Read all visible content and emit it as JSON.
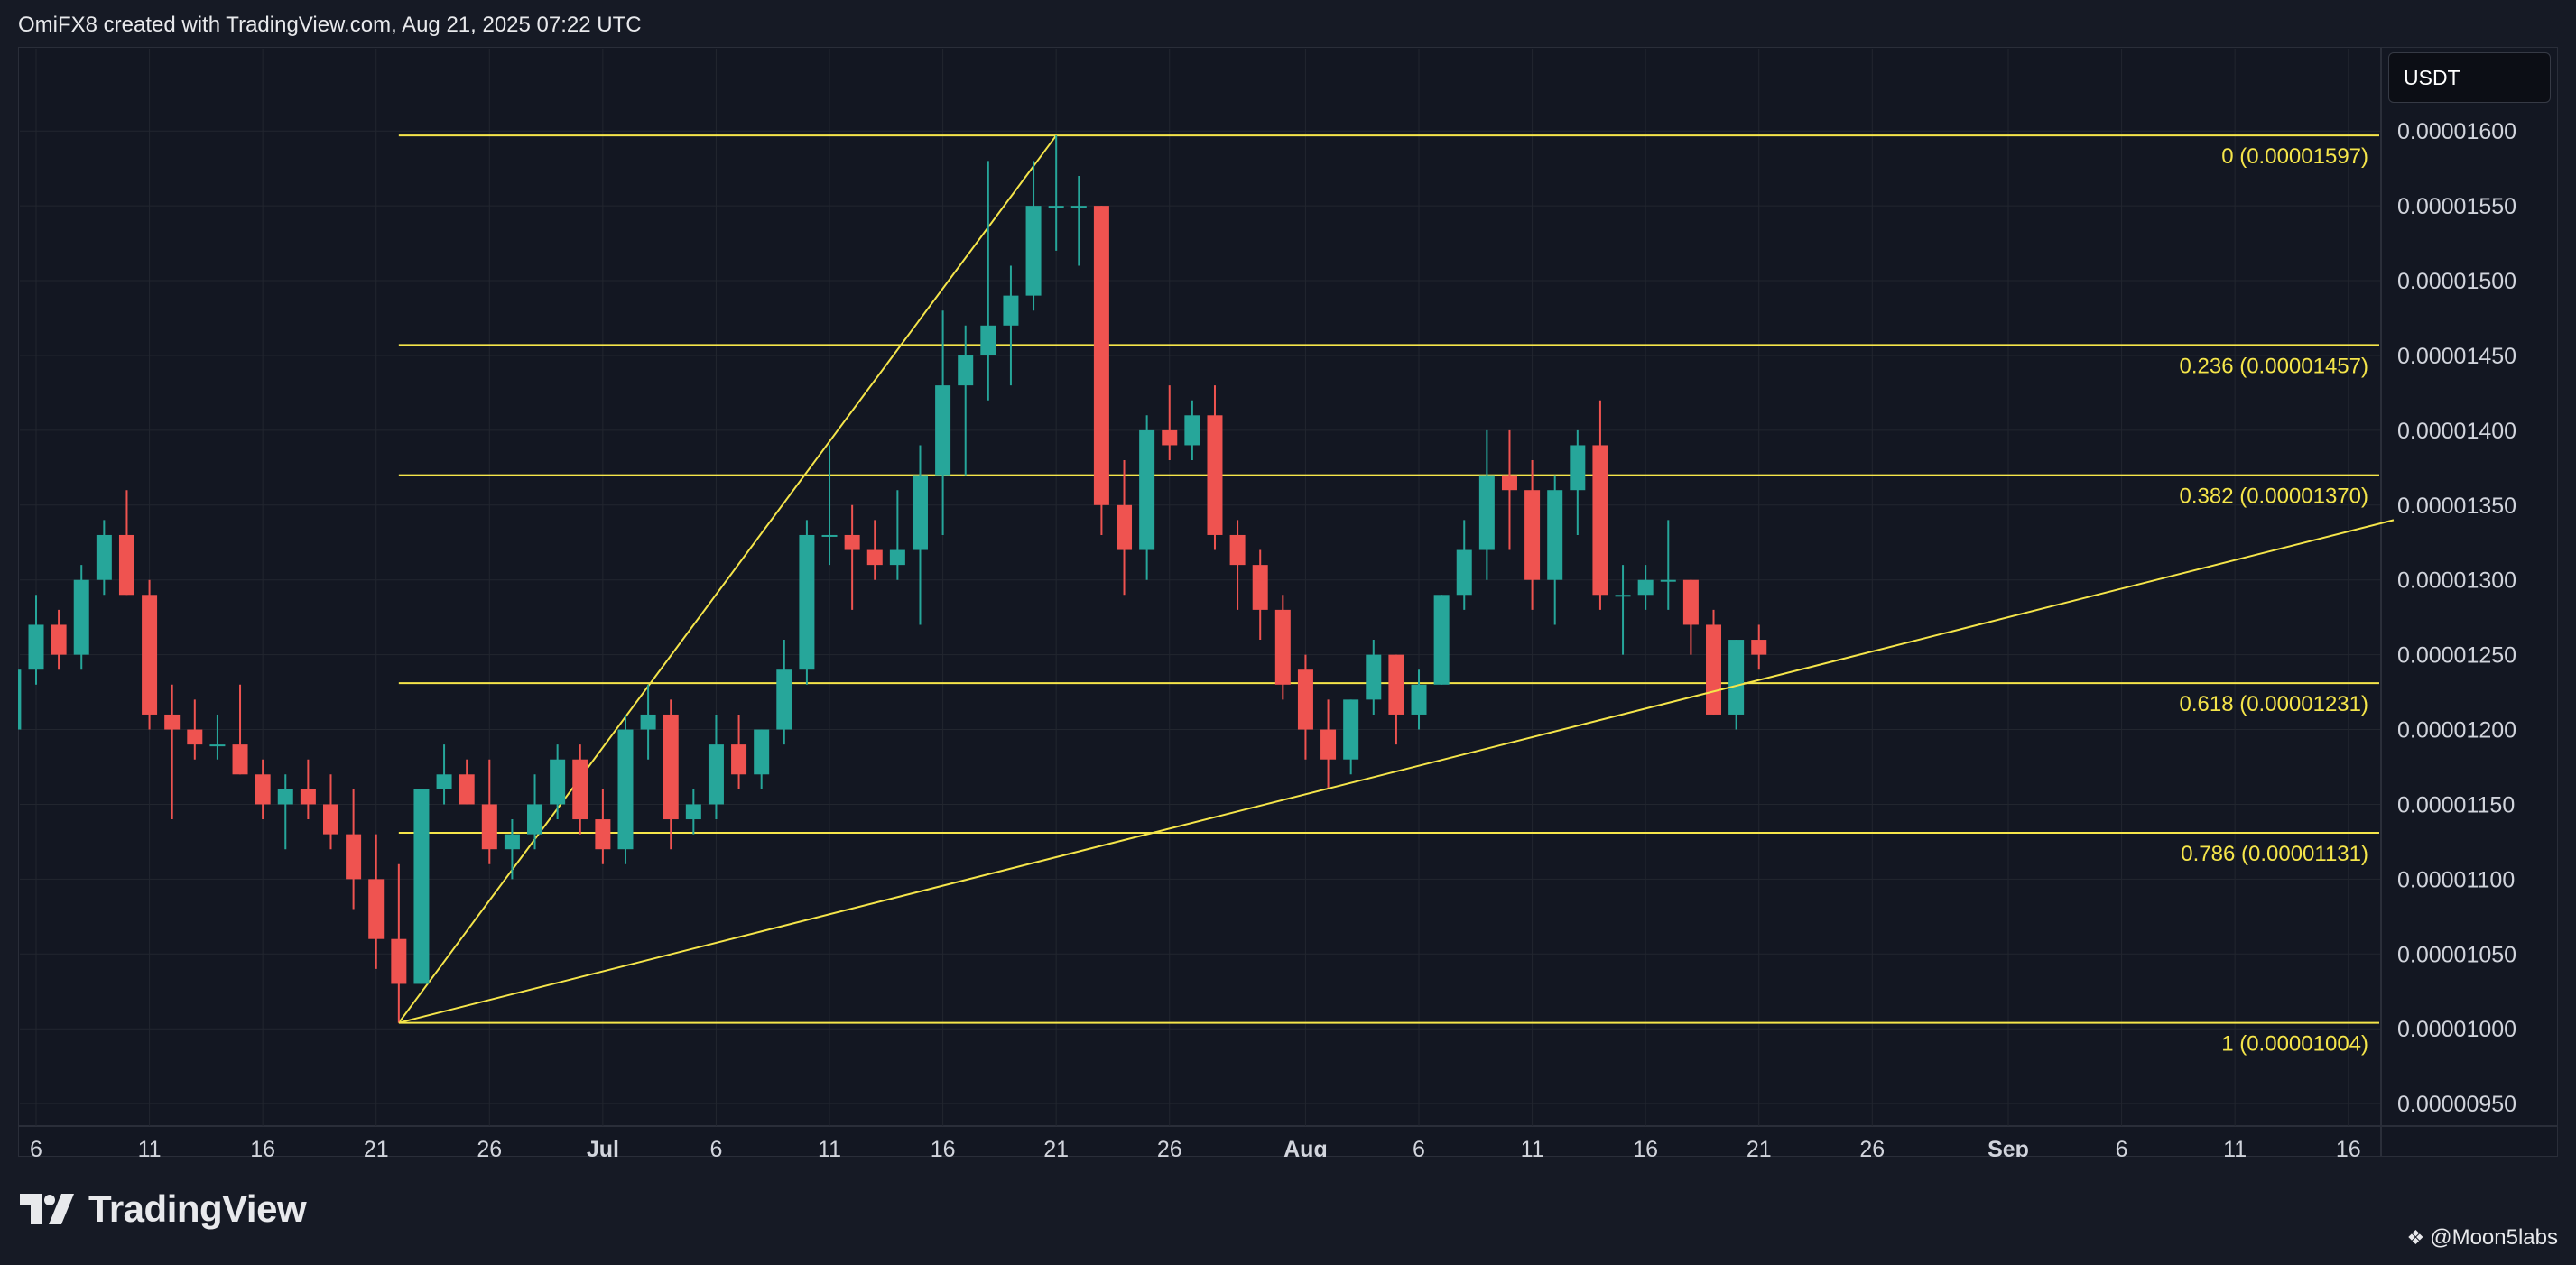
{
  "header": {
    "credit": "OmiFX8 created with TradingView.com, Aug 21, 2025 07:22 UTC"
  },
  "currency": "USDT",
  "footer": {
    "brand": "TradingView",
    "watermark": "@Moon5labs"
  },
  "colors": {
    "up": "#26a69a",
    "down": "#ef5350",
    "fib": "#f5e54a",
    "grid": "#22262f",
    "text": "#d1d4dc"
  },
  "icons": {
    "brand_logo": "tradingview-logo-icon",
    "watermark_mark": "diamond-icon"
  },
  "chart_data": {
    "type": "candlestick",
    "title": "",
    "xlabel": "",
    "ylabel": "",
    "ylim": [
      9.35e-06,
      1.655e-05
    ],
    "x_tick_labels": [
      {
        "date": "2025-06-06",
        "label": "6"
      },
      {
        "date": "2025-06-11",
        "label": "11"
      },
      {
        "date": "2025-06-16",
        "label": "16"
      },
      {
        "date": "2025-06-21",
        "label": "21"
      },
      {
        "date": "2025-06-26",
        "label": "26"
      },
      {
        "date": "2025-07-01",
        "label": "Jul"
      },
      {
        "date": "2025-07-06",
        "label": "6"
      },
      {
        "date": "2025-07-11",
        "label": "11"
      },
      {
        "date": "2025-07-16",
        "label": "16"
      },
      {
        "date": "2025-07-21",
        "label": "21"
      },
      {
        "date": "2025-07-26",
        "label": "26"
      },
      {
        "date": "2025-08-01",
        "label": "Aug"
      },
      {
        "date": "2025-08-06",
        "label": "6"
      },
      {
        "date": "2025-08-11",
        "label": "11"
      },
      {
        "date": "2025-08-16",
        "label": "16"
      },
      {
        "date": "2025-08-21",
        "label": "21"
      },
      {
        "date": "2025-08-26",
        "label": "26"
      },
      {
        "date": "2025-09-01",
        "label": "Sep"
      },
      {
        "date": "2025-09-06",
        "label": "6"
      },
      {
        "date": "2025-09-11",
        "label": "11"
      },
      {
        "date": "2025-09-16",
        "label": "16"
      }
    ],
    "y_tick_labels": [
      "0.00000950",
      "0.00001000",
      "0.00001050",
      "0.00001100",
      "0.00001150",
      "0.00001200",
      "0.00001250",
      "0.00001300",
      "0.00001350",
      "0.00001400",
      "0.00001450",
      "0.00001500",
      "0.00001550",
      "0.00001600"
    ],
    "fib_levels": [
      {
        "ratio": "0",
        "price": 1.597e-05,
        "label": "0 (0.00001597)"
      },
      {
        "ratio": "0.236",
        "price": 1.457e-05,
        "label": "0.236 (0.00001457)"
      },
      {
        "ratio": "0.382",
        "price": 1.37e-05,
        "label": "0.382 (0.00001370)"
      },
      {
        "ratio": "0.618",
        "price": 1.231e-05,
        "label": "0.618 (0.00001231)"
      },
      {
        "ratio": "0.786",
        "price": 1.131e-05,
        "label": "0.786 (0.00001131)"
      },
      {
        "ratio": "1",
        "price": 1.004e-05,
        "label": "1 (0.00001004)"
      }
    ],
    "fib_start_date": "2025-06-22",
    "fib_swing": [
      {
        "date": "2025-06-22",
        "price": 1.004e-05
      },
      {
        "date": "2025-07-21",
        "price": 1.597e-05
      }
    ],
    "trendline": [
      {
        "date": "2025-06-22",
        "price": 1.004e-05
      },
      {
        "date": "2025-09-18",
        "price": 1.34e-05
      }
    ],
    "candles": [
      {
        "date": "2025-06-05",
        "o": 1.2e-05,
        "h": 1.25e-05,
        "l": 1.19e-05,
        "c": 1.24e-05
      },
      {
        "date": "2025-06-06",
        "o": 1.24e-05,
        "h": 1.29e-05,
        "l": 1.23e-05,
        "c": 1.27e-05
      },
      {
        "date": "2025-06-07",
        "o": 1.27e-05,
        "h": 1.28e-05,
        "l": 1.24e-05,
        "c": 1.25e-05
      },
      {
        "date": "2025-06-08",
        "o": 1.25e-05,
        "h": 1.31e-05,
        "l": 1.24e-05,
        "c": 1.3e-05
      },
      {
        "date": "2025-06-09",
        "o": 1.3e-05,
        "h": 1.34e-05,
        "l": 1.29e-05,
        "c": 1.33e-05
      },
      {
        "date": "2025-06-10",
        "o": 1.33e-05,
        "h": 1.36e-05,
        "l": 1.29e-05,
        "c": 1.29e-05
      },
      {
        "date": "2025-06-11",
        "o": 1.29e-05,
        "h": 1.3e-05,
        "l": 1.2e-05,
        "c": 1.21e-05
      },
      {
        "date": "2025-06-12",
        "o": 1.21e-05,
        "h": 1.23e-05,
        "l": 1.14e-05,
        "c": 1.2e-05
      },
      {
        "date": "2025-06-13",
        "o": 1.2e-05,
        "h": 1.22e-05,
        "l": 1.18e-05,
        "c": 1.19e-05
      },
      {
        "date": "2025-06-14",
        "o": 1.19e-05,
        "h": 1.21e-05,
        "l": 1.18e-05,
        "c": 1.19e-05
      },
      {
        "date": "2025-06-15",
        "o": 1.19e-05,
        "h": 1.23e-05,
        "l": 1.17e-05,
        "c": 1.17e-05
      },
      {
        "date": "2025-06-16",
        "o": 1.17e-05,
        "h": 1.18e-05,
        "l": 1.14e-05,
        "c": 1.15e-05
      },
      {
        "date": "2025-06-17",
        "o": 1.15e-05,
        "h": 1.17e-05,
        "l": 1.12e-05,
        "c": 1.16e-05
      },
      {
        "date": "2025-06-18",
        "o": 1.16e-05,
        "h": 1.18e-05,
        "l": 1.14e-05,
        "c": 1.15e-05
      },
      {
        "date": "2025-06-19",
        "o": 1.15e-05,
        "h": 1.17e-05,
        "l": 1.12e-05,
        "c": 1.13e-05
      },
      {
        "date": "2025-06-20",
        "o": 1.13e-05,
        "h": 1.16e-05,
        "l": 1.08e-05,
        "c": 1.1e-05
      },
      {
        "date": "2025-06-21",
        "o": 1.1e-05,
        "h": 1.13e-05,
        "l": 1.04e-05,
        "c": 1.06e-05
      },
      {
        "date": "2025-06-22",
        "o": 1.06e-05,
        "h": 1.11e-05,
        "l": 1.004e-05,
        "c": 1.03e-05
      },
      {
        "date": "2025-06-23",
        "o": 1.03e-05,
        "h": 1.16e-05,
        "l": 1.03e-05,
        "c": 1.16e-05
      },
      {
        "date": "2025-06-24",
        "o": 1.16e-05,
        "h": 1.19e-05,
        "l": 1.15e-05,
        "c": 1.17e-05
      },
      {
        "date": "2025-06-25",
        "o": 1.17e-05,
        "h": 1.18e-05,
        "l": 1.15e-05,
        "c": 1.15e-05
      },
      {
        "date": "2025-06-26",
        "o": 1.15e-05,
        "h": 1.18e-05,
        "l": 1.11e-05,
        "c": 1.12e-05
      },
      {
        "date": "2025-06-27",
        "o": 1.12e-05,
        "h": 1.14e-05,
        "l": 1.1e-05,
        "c": 1.13e-05
      },
      {
        "date": "2025-06-28",
        "o": 1.13e-05,
        "h": 1.17e-05,
        "l": 1.12e-05,
        "c": 1.15e-05
      },
      {
        "date": "2025-06-29",
        "o": 1.15e-05,
        "h": 1.19e-05,
        "l": 1.14e-05,
        "c": 1.18e-05
      },
      {
        "date": "2025-06-30",
        "o": 1.18e-05,
        "h": 1.19e-05,
        "l": 1.13e-05,
        "c": 1.14e-05
      },
      {
        "date": "2025-07-01",
        "o": 1.14e-05,
        "h": 1.16e-05,
        "l": 1.11e-05,
        "c": 1.12e-05
      },
      {
        "date": "2025-07-02",
        "o": 1.12e-05,
        "h": 1.21e-05,
        "l": 1.11e-05,
        "c": 1.2e-05
      },
      {
        "date": "2025-07-03",
        "o": 1.2e-05,
        "h": 1.23e-05,
        "l": 1.18e-05,
        "c": 1.21e-05
      },
      {
        "date": "2025-07-04",
        "o": 1.21e-05,
        "h": 1.22e-05,
        "l": 1.12e-05,
        "c": 1.14e-05
      },
      {
        "date": "2025-07-05",
        "o": 1.14e-05,
        "h": 1.16e-05,
        "l": 1.13e-05,
        "c": 1.15e-05
      },
      {
        "date": "2025-07-06",
        "o": 1.15e-05,
        "h": 1.21e-05,
        "l": 1.14e-05,
        "c": 1.19e-05
      },
      {
        "date": "2025-07-07",
        "o": 1.19e-05,
        "h": 1.21e-05,
        "l": 1.16e-05,
        "c": 1.17e-05
      },
      {
        "date": "2025-07-08",
        "o": 1.17e-05,
        "h": 1.2e-05,
        "l": 1.16e-05,
        "c": 1.2e-05
      },
      {
        "date": "2025-07-09",
        "o": 1.2e-05,
        "h": 1.26e-05,
        "l": 1.19e-05,
        "c": 1.24e-05
      },
      {
        "date": "2025-07-10",
        "o": 1.24e-05,
        "h": 1.34e-05,
        "l": 1.23e-05,
        "c": 1.33e-05
      },
      {
        "date": "2025-07-11",
        "o": 1.33e-05,
        "h": 1.39e-05,
        "l": 1.31e-05,
        "c": 1.33e-05
      },
      {
        "date": "2025-07-12",
        "o": 1.33e-05,
        "h": 1.35e-05,
        "l": 1.28e-05,
        "c": 1.32e-05
      },
      {
        "date": "2025-07-13",
        "o": 1.32e-05,
        "h": 1.34e-05,
        "l": 1.3e-05,
        "c": 1.31e-05
      },
      {
        "date": "2025-07-14",
        "o": 1.31e-05,
        "h": 1.36e-05,
        "l": 1.3e-05,
        "c": 1.32e-05
      },
      {
        "date": "2025-07-15",
        "o": 1.32e-05,
        "h": 1.39e-05,
        "l": 1.27e-05,
        "c": 1.37e-05
      },
      {
        "date": "2025-07-16",
        "o": 1.37e-05,
        "h": 1.48e-05,
        "l": 1.33e-05,
        "c": 1.43e-05
      },
      {
        "date": "2025-07-17",
        "o": 1.43e-05,
        "h": 1.47e-05,
        "l": 1.37e-05,
        "c": 1.45e-05
      },
      {
        "date": "2025-07-18",
        "o": 1.45e-05,
        "h": 1.58e-05,
        "l": 1.42e-05,
        "c": 1.47e-05
      },
      {
        "date": "2025-07-19",
        "o": 1.47e-05,
        "h": 1.51e-05,
        "l": 1.43e-05,
        "c": 1.49e-05
      },
      {
        "date": "2025-07-20",
        "o": 1.49e-05,
        "h": 1.58e-05,
        "l": 1.48e-05,
        "c": 1.55e-05
      },
      {
        "date": "2025-07-21",
        "o": 1.55e-05,
        "h": 1.597e-05,
        "l": 1.52e-05,
        "c": 1.55e-05
      },
      {
        "date": "2025-07-22",
        "o": 1.55e-05,
        "h": 1.57e-05,
        "l": 1.51e-05,
        "c": 1.55e-05
      },
      {
        "date": "2025-07-23",
        "o": 1.55e-05,
        "h": 1.55e-05,
        "l": 1.33e-05,
        "c": 1.35e-05
      },
      {
        "date": "2025-07-24",
        "o": 1.35e-05,
        "h": 1.38e-05,
        "l": 1.29e-05,
        "c": 1.32e-05
      },
      {
        "date": "2025-07-25",
        "o": 1.32e-05,
        "h": 1.41e-05,
        "l": 1.3e-05,
        "c": 1.4e-05
      },
      {
        "date": "2025-07-26",
        "o": 1.4e-05,
        "h": 1.43e-05,
        "l": 1.38e-05,
        "c": 1.39e-05
      },
      {
        "date": "2025-07-27",
        "o": 1.39e-05,
        "h": 1.42e-05,
        "l": 1.38e-05,
        "c": 1.41e-05
      },
      {
        "date": "2025-07-28",
        "o": 1.41e-05,
        "h": 1.43e-05,
        "l": 1.32e-05,
        "c": 1.33e-05
      },
      {
        "date": "2025-07-29",
        "o": 1.33e-05,
        "h": 1.34e-05,
        "l": 1.28e-05,
        "c": 1.31e-05
      },
      {
        "date": "2025-07-30",
        "o": 1.31e-05,
        "h": 1.32e-05,
        "l": 1.26e-05,
        "c": 1.28e-05
      },
      {
        "date": "2025-07-31",
        "o": 1.28e-05,
        "h": 1.29e-05,
        "l": 1.22e-05,
        "c": 1.23e-05
      },
      {
        "date": "2025-08-01",
        "o": 1.24e-05,
        "h": 1.25e-05,
        "l": 1.18e-05,
        "c": 1.2e-05
      },
      {
        "date": "2025-08-02",
        "o": 1.2e-05,
        "h": 1.22e-05,
        "l": 1.16e-05,
        "c": 1.18e-05
      },
      {
        "date": "2025-08-03",
        "o": 1.18e-05,
        "h": 1.22e-05,
        "l": 1.17e-05,
        "c": 1.22e-05
      },
      {
        "date": "2025-08-04",
        "o": 1.22e-05,
        "h": 1.26e-05,
        "l": 1.21e-05,
        "c": 1.25e-05
      },
      {
        "date": "2025-08-05",
        "o": 1.25e-05,
        "h": 1.25e-05,
        "l": 1.19e-05,
        "c": 1.21e-05
      },
      {
        "date": "2025-08-06",
        "o": 1.21e-05,
        "h": 1.24e-05,
        "l": 1.2e-05,
        "c": 1.23e-05
      },
      {
        "date": "2025-08-07",
        "o": 1.23e-05,
        "h": 1.29e-05,
        "l": 1.23e-05,
        "c": 1.29e-05
      },
      {
        "date": "2025-08-08",
        "o": 1.29e-05,
        "h": 1.34e-05,
        "l": 1.28e-05,
        "c": 1.32e-05
      },
      {
        "date": "2025-08-09",
        "o": 1.32e-05,
        "h": 1.4e-05,
        "l": 1.3e-05,
        "c": 1.37e-05
      },
      {
        "date": "2025-08-10",
        "o": 1.37e-05,
        "h": 1.4e-05,
        "l": 1.32e-05,
        "c": 1.36e-05
      },
      {
        "date": "2025-08-11",
        "o": 1.36e-05,
        "h": 1.38e-05,
        "l": 1.28e-05,
        "c": 1.3e-05
      },
      {
        "date": "2025-08-12",
        "o": 1.3e-05,
        "h": 1.37e-05,
        "l": 1.27e-05,
        "c": 1.36e-05
      },
      {
        "date": "2025-08-13",
        "o": 1.36e-05,
        "h": 1.4e-05,
        "l": 1.33e-05,
        "c": 1.39e-05
      },
      {
        "date": "2025-08-14",
        "o": 1.39e-05,
        "h": 1.42e-05,
        "l": 1.28e-05,
        "c": 1.29e-05
      },
      {
        "date": "2025-08-15",
        "o": 1.29e-05,
        "h": 1.31e-05,
        "l": 1.25e-05,
        "c": 1.29e-05
      },
      {
        "date": "2025-08-16",
        "o": 1.29e-05,
        "h": 1.31e-05,
        "l": 1.28e-05,
        "c": 1.3e-05
      },
      {
        "date": "2025-08-17",
        "o": 1.3e-05,
        "h": 1.34e-05,
        "l": 1.28e-05,
        "c": 1.3e-05
      },
      {
        "date": "2025-08-18",
        "o": 1.3e-05,
        "h": 1.3e-05,
        "l": 1.25e-05,
        "c": 1.27e-05
      },
      {
        "date": "2025-08-19",
        "o": 1.27e-05,
        "h": 1.28e-05,
        "l": 1.21e-05,
        "c": 1.21e-05
      },
      {
        "date": "2025-08-20",
        "o": 1.21e-05,
        "h": 1.26e-05,
        "l": 1.2e-05,
        "c": 1.26e-05
      },
      {
        "date": "2025-08-21",
        "o": 1.26e-05,
        "h": 1.27e-05,
        "l": 1.24e-05,
        "c": 1.25e-05
      }
    ]
  }
}
